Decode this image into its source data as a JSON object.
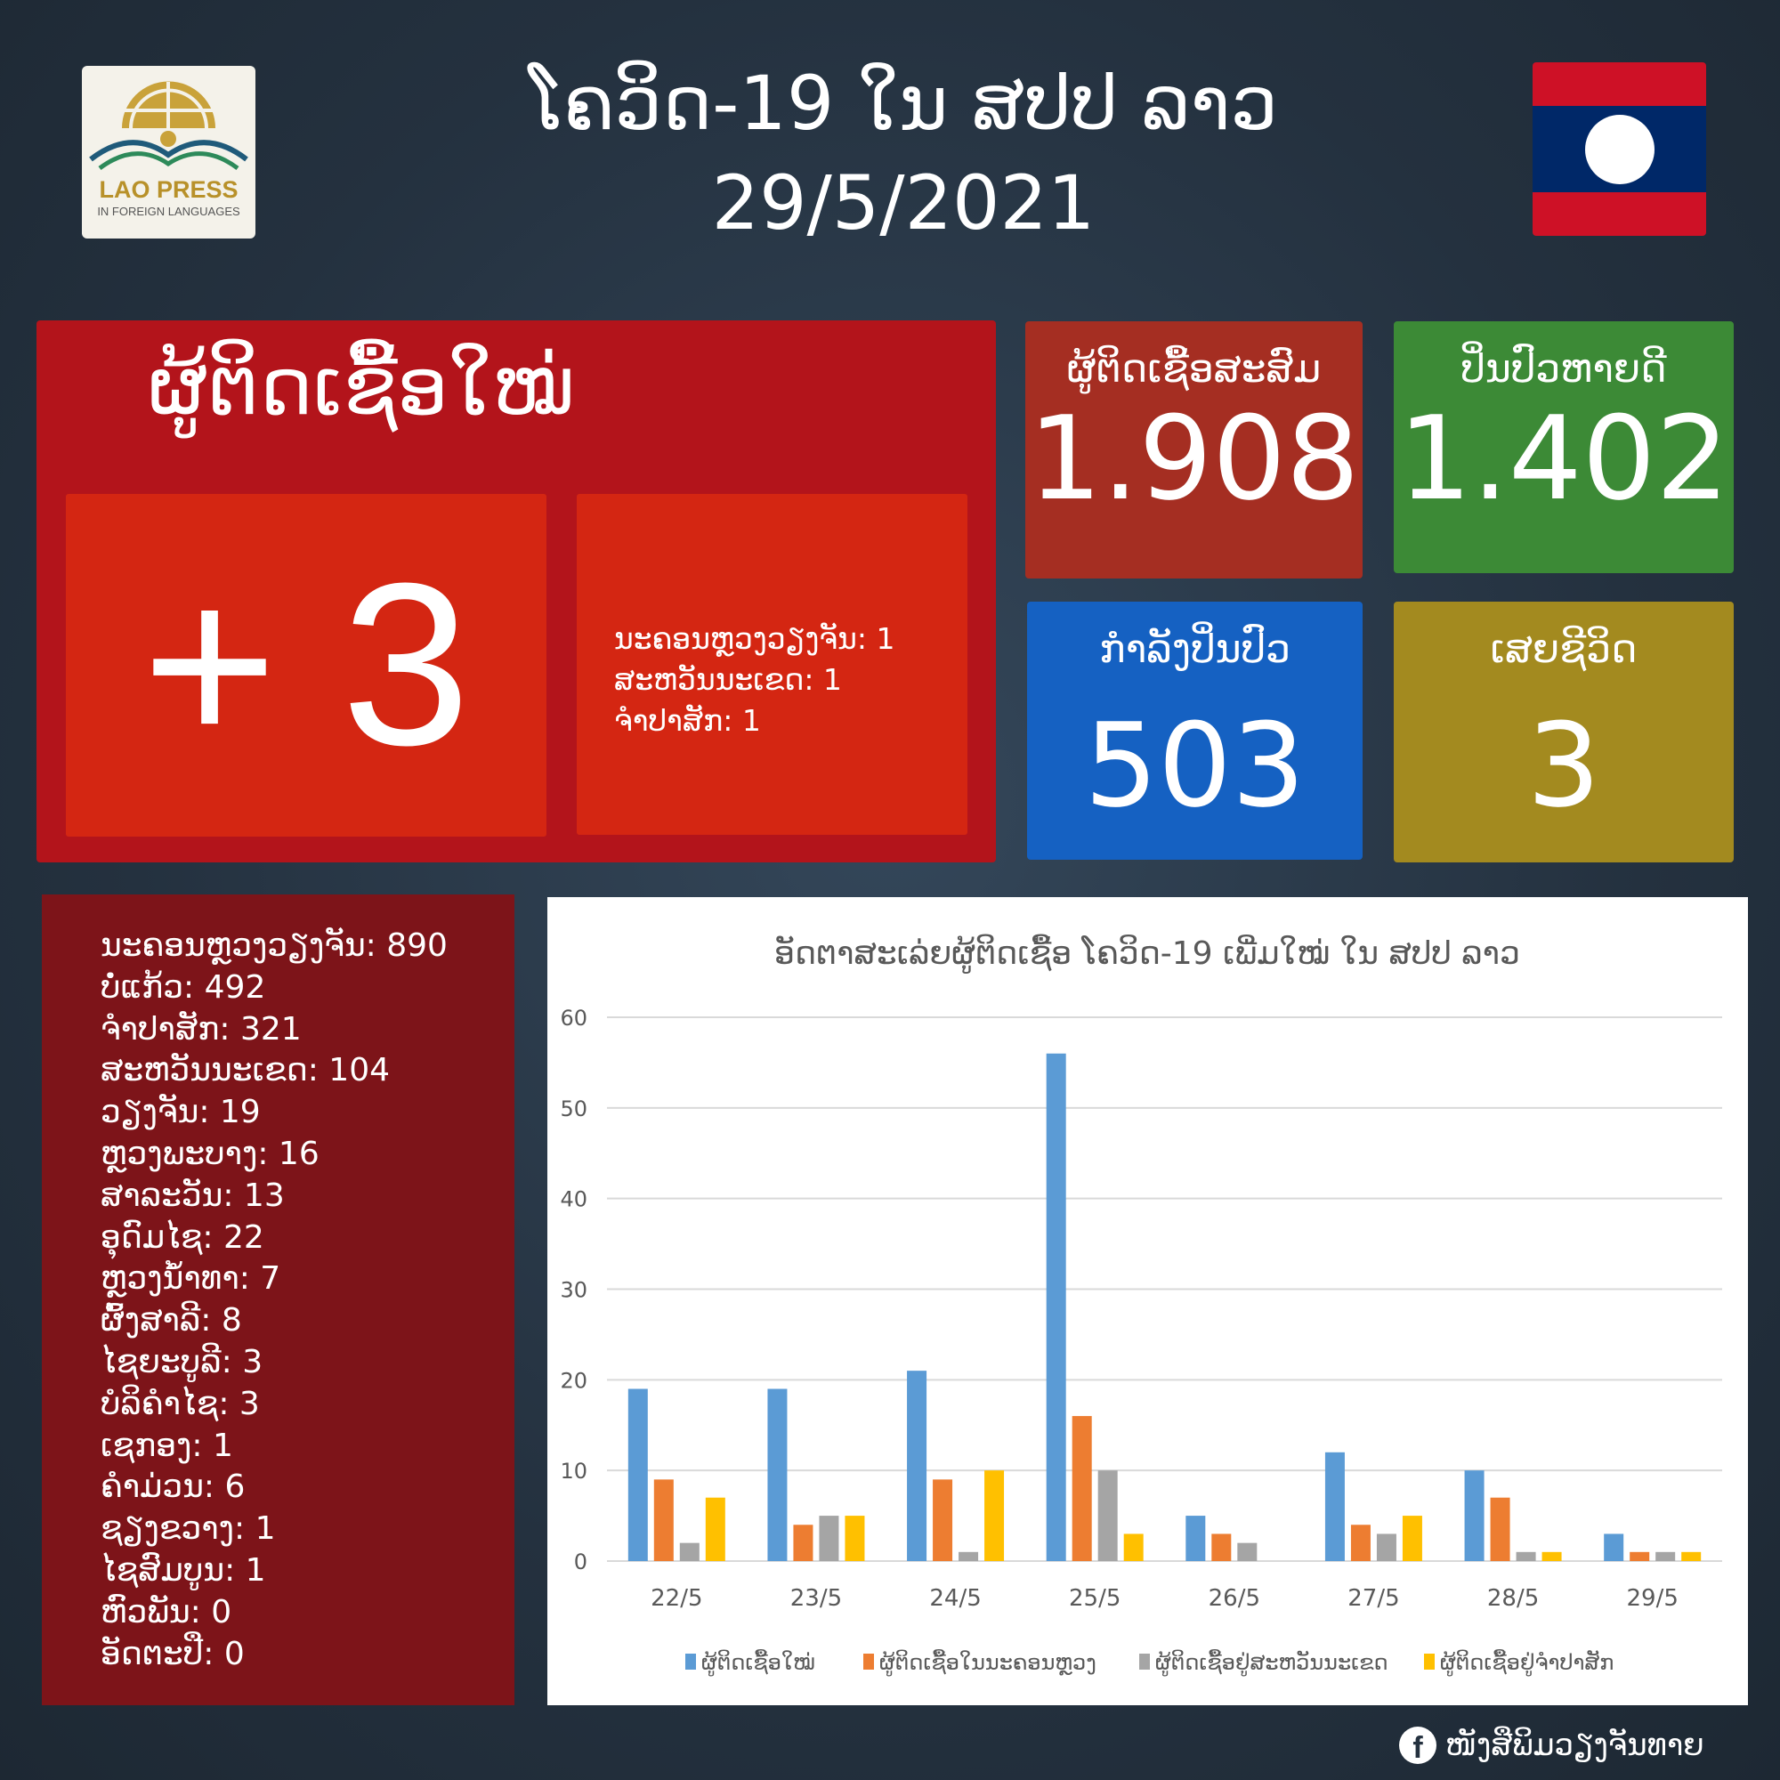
{
  "logo": {
    "name": "LAO PRESS",
    "subtitle": "IN FOREIGN LANGUAGES"
  },
  "header": {
    "title": "ໂຄວິດ-19 ໃນ ສປປ ລາວ",
    "date": "29/5/2021"
  },
  "new_cases": {
    "label": "ຜູ້ຕິດເຊື້ອໃໝ່",
    "value": "+ 3",
    "breakdown": [
      "ນະຄອນຫຼວງວຽງຈັນ: 1",
      "ສະຫວັນນະເຂດ: 1",
      "ຈຳປາສັກ: 1"
    ]
  },
  "stats": {
    "cumulative": {
      "label": "ຜູ້ຕິດເຊື້ອສະສົມ",
      "value": "1.908",
      "color": "#a52e22"
    },
    "recovered": {
      "label": "ປິ່ນປົວຫາຍດີ",
      "value": "1.402",
      "color": "#3c8a36"
    },
    "in_treatment": {
      "label": "ກຳລັງປິ່ນປົວ",
      "value": "503",
      "color": "#1561c2"
    },
    "deaths": {
      "label": "ເສຍຊີວິດ",
      "value": "3",
      "color": "#a38a1f"
    }
  },
  "provinces": [
    "ນະຄອນຫຼວງວຽງຈັນ: 890",
    "ບໍ່ແກ້ວ: 492",
    "ຈຳປາສັກ: 321",
    "ສະຫວັນນະເຂດ: 104",
    "ວຽງຈັນ: 19",
    "ຫຼວງພະບາງ: 16",
    "ສາລະວັນ: 13",
    "ອຸດົມໄຊ: 22",
    "ຫຼວງນ້ຳທາ: 7",
    "ຜົ້ງສາລີ: 8",
    "ໄຊຍະບູລີ: 3",
    "ບໍລິຄຳໄຊ: 3",
    "ເຊກອງ: 1",
    "ຄຳມ່ວນ: 6",
    "ຊຽງຂວາງ: 1",
    "ໄຊສົມບູນ: 1",
    "ຫົວພັນ: 0",
    "ອັດຕະປື: 0"
  ],
  "chart_data": {
    "type": "bar",
    "title": "ອັດຕາສະເລ່ຍຜູ້ຕິດເຊື້ອ ໂຄວິດ-19 ເພີ່ມໃໝ່ ໃນ ສປປ ລາວ",
    "categories": [
      "22/5",
      "23/5",
      "24/5",
      "25/5",
      "26/5",
      "27/5",
      "28/5",
      "29/5"
    ],
    "ylim": [
      0,
      60
    ],
    "yticks": [
      0,
      10,
      20,
      30,
      40,
      50,
      60
    ],
    "grid": true,
    "legend": "bottom",
    "series": [
      {
        "name": "ຜູ້ຕິດເຊື້ອໃໝ່",
        "color": "#5b9bd5",
        "values": [
          19,
          19,
          21,
          56,
          5,
          12,
          10,
          3
        ]
      },
      {
        "name": "ຜູ້ຕິດເຊື້ອໃນນະຄອນຫຼວງ",
        "color": "#ed7d31",
        "values": [
          9,
          4,
          9,
          16,
          3,
          4,
          7,
          1
        ]
      },
      {
        "name": "ຜູ້ຕິດເຊື້ອຢູ່ສະຫວັນນະເຂດ",
        "color": "#a5a5a5",
        "values": [
          2,
          5,
          1,
          10,
          2,
          3,
          1,
          1
        ]
      },
      {
        "name": "ຜູ້ຕິດເຊື້ອຢູ່ຈຳປາສັກ",
        "color": "#ffc000",
        "values": [
          7,
          5,
          10,
          3,
          0,
          5,
          1,
          1
        ]
      }
    ]
  },
  "footer": {
    "icon": "facebook-icon",
    "text": "ໜັງສືພິມວຽງຈັນທາຍ"
  }
}
